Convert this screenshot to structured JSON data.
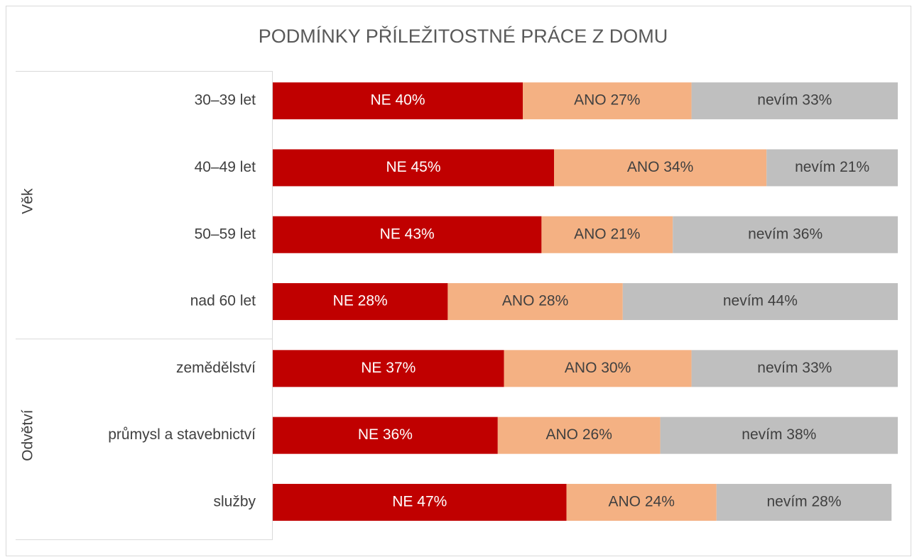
{
  "chart_data": {
    "type": "stacked-bar",
    "title": "PODMÍNKY PŘÍLEŽITOSTNÉ PRÁCE Z DOMU",
    "groups": [
      {
        "label": "Věk",
        "categories": [
          "30–39 let",
          "40–49 let",
          "50–59 let",
          "nad 60 let"
        ]
      },
      {
        "label": "Odvětví",
        "categories": [
          "zemědělství",
          "průmysl a stavebnictví",
          "služby"
        ]
      }
    ],
    "xlim": [
      0,
      100
    ],
    "series": [
      {
        "color": "#c00000",
        "values": [
          40,
          45,
          43,
          28,
          37,
          36,
          47
        ],
        "value_labels": [
          "NE 40%",
          "NE 45%",
          "NE 43%",
          "NE 28%",
          "NE 37%",
          "NE 36%",
          "NE 47%"
        ]
      },
      {
        "color": "#f4b183",
        "values": [
          27,
          34,
          21,
          28,
          30,
          26,
          24
        ],
        "value_labels": [
          "ANO 27%",
          "ANO 34%",
          "ANO 21%",
          "ANO 28%",
          "ANO 30%",
          "ANO 26%",
          "ANO 24%"
        ]
      },
      {
        "color": "#bfbfbf",
        "values": [
          33,
          21,
          36,
          44,
          33,
          38,
          28
        ],
        "value_labels": [
          "nevím 33%",
          "nevím 21%",
          "nevím 36%",
          "nevím 44%",
          "nevím 33%",
          "nevím 38%",
          "nevím 28%"
        ]
      }
    ]
  }
}
